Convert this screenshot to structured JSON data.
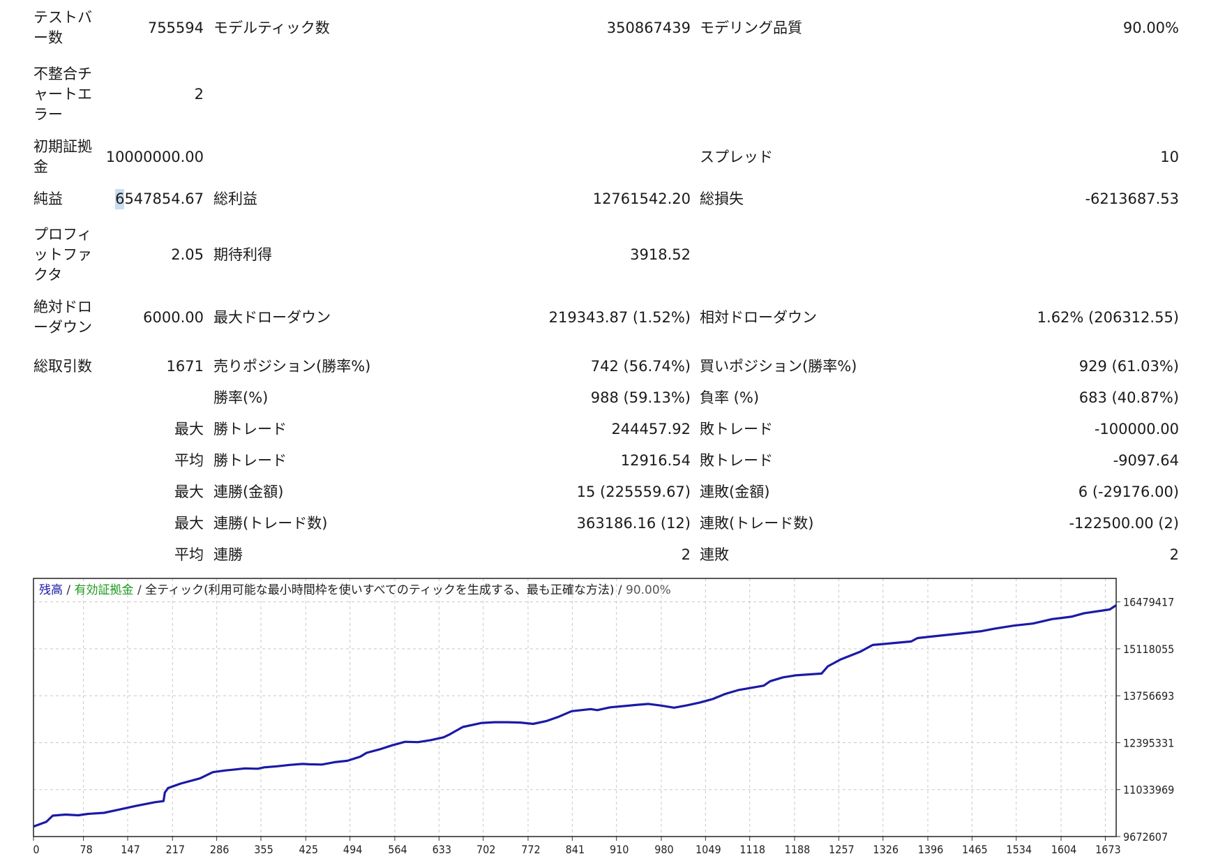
{
  "report": {
    "rows": [
      {
        "label": "テストバー数",
        "value": "755594",
        "label2": "モデルティック数",
        "value2": "350867439",
        "label3": "モデリング品質",
        "value3": "90.00%"
      },
      {
        "label": "不整合チャートエラー",
        "value": "2"
      },
      {
        "label": "初期証拠金",
        "value": "10000000.00",
        "label3": "スプレッド",
        "value3": "10"
      },
      {
        "label": "純益",
        "value_hl": "6",
        "value_rest": "547854.67",
        "label2": "総利益",
        "value2": "12761542.20",
        "label3": "総損失",
        "value3": "-6213687.53"
      },
      {
        "label": "プロフィットファクタ",
        "value": "2.05",
        "label2": "期待利得",
        "value2": "3918.52"
      },
      {
        "label": "絶対ドローダウン",
        "value": "6000.00",
        "label2": "最大ドローダウン",
        "value2": "219343.87 (1.52%)",
        "label3": "相対ドローダウン",
        "value3": "1.62% (206312.55)"
      },
      {
        "label": "総取引数",
        "value": "1671",
        "label2": "売りポジション(勝率%)",
        "value2": "742 (56.74%)",
        "label3": "買いポジション(勝率%)",
        "value3": "929 (61.03%)"
      },
      {
        "label2": "勝率(%)",
        "value2": "988 (59.13%)",
        "label3": "負率 (%)",
        "value3": "683 (40.87%)"
      },
      {
        "value": "最大",
        "label2": "勝トレード",
        "value2": "244457.92",
        "label3": "敗トレード",
        "value3": "-100000.00"
      },
      {
        "value": "平均",
        "label2": "勝トレード",
        "value2": "12916.54",
        "label3": "敗トレード",
        "value3": "-9097.64"
      },
      {
        "value": "最大",
        "label2": "連勝(金額)",
        "value2": "15 (225559.67)",
        "label3": "連敗(金額)",
        "value3": "6 (-29176.00)"
      },
      {
        "value": "最大",
        "label2": "連勝(トレード数)",
        "value2": "363186.16 (12)",
        "label3": "連敗(トレード数)",
        "value3": "-122500.00 (2)"
      },
      {
        "value": "平均",
        "label2": "連勝",
        "value2": "2",
        "label3": "連敗",
        "value3": "2"
      }
    ]
  },
  "chart_data": {
    "type": "line",
    "legend": {
      "balance": "残高",
      "sep1": " / ",
      "equity": "有効証拠金",
      "sep2": " / ",
      "model": "全ティック(利用可能な最小時間枠を使いすべてのティックを生成する、最も正確な方法)",
      "sep3": " / ",
      "quality": "90.00%"
    },
    "x_ticks": [
      "0",
      "78",
      "147",
      "217",
      "286",
      "355",
      "425",
      "494",
      "564",
      "633",
      "702",
      "772",
      "841",
      "910",
      "980",
      "1049",
      "1118",
      "1188",
      "1257",
      "1326",
      "1396",
      "1465",
      "1534",
      "1604",
      "1673"
    ],
    "y_ticks": [
      "16479417",
      "15118055",
      "13756693",
      "12395331",
      "11033969",
      "9672607"
    ],
    "xlim": [
      0,
      1690
    ],
    "ylim": [
      9672607,
      17160000
    ],
    "grid": true,
    "colors": {
      "balance": "#1a1aa6",
      "equity": "#1e9a1e",
      "grid": "#c8c8c8"
    },
    "series": [
      {
        "name": "残高",
        "x": [
          0,
          20,
          30,
          50,
          70,
          85,
          110,
          130,
          160,
          190,
          203,
          205,
          210,
          230,
          260,
          280,
          300,
          310,
          330,
          350,
          360,
          380,
          400,
          420,
          430,
          450,
          470,
          490,
          510,
          520,
          540,
          560,
          580,
          600,
          620,
          640,
          650,
          670,
          700,
          720,
          740,
          760,
          780,
          800,
          820,
          840,
          870,
          880,
          900,
          940,
          960,
          980,
          1000,
          1020,
          1040,
          1060,
          1080,
          1100,
          1140,
          1150,
          1170,
          1190,
          1230,
          1240,
          1260,
          1290,
          1310,
          1340,
          1370,
          1380,
          1410,
          1440,
          1480,
          1500,
          1530,
          1560,
          1590,
          1620,
          1640,
          1680,
          1690
        ],
        "y": [
          9965000,
          10100000,
          10280000,
          10310000,
          10290000,
          10330000,
          10360000,
          10440000,
          10560000,
          10670000,
          10700000,
          10950000,
          11080000,
          11210000,
          11360000,
          11540000,
          11590000,
          11610000,
          11650000,
          11640000,
          11680000,
          11710000,
          11750000,
          11780000,
          11770000,
          11760000,
          11830000,
          11870000,
          11990000,
          12100000,
          12200000,
          12320000,
          12420000,
          12410000,
          12470000,
          12550000,
          12640000,
          12850000,
          12970000,
          12990000,
          12990000,
          12980000,
          12940000,
          13020000,
          13150000,
          13310000,
          13370000,
          13340000,
          13420000,
          13490000,
          13520000,
          13470000,
          13410000,
          13480000,
          13560000,
          13660000,
          13810000,
          13920000,
          14050000,
          14180000,
          14290000,
          14350000,
          14400000,
          14610000,
          14810000,
          15030000,
          15230000,
          15280000,
          15330000,
          15430000,
          15490000,
          15550000,
          15630000,
          15700000,
          15790000,
          15850000,
          15980000,
          16050000,
          16150000,
          16260000,
          16380000
        ]
      }
    ]
  }
}
